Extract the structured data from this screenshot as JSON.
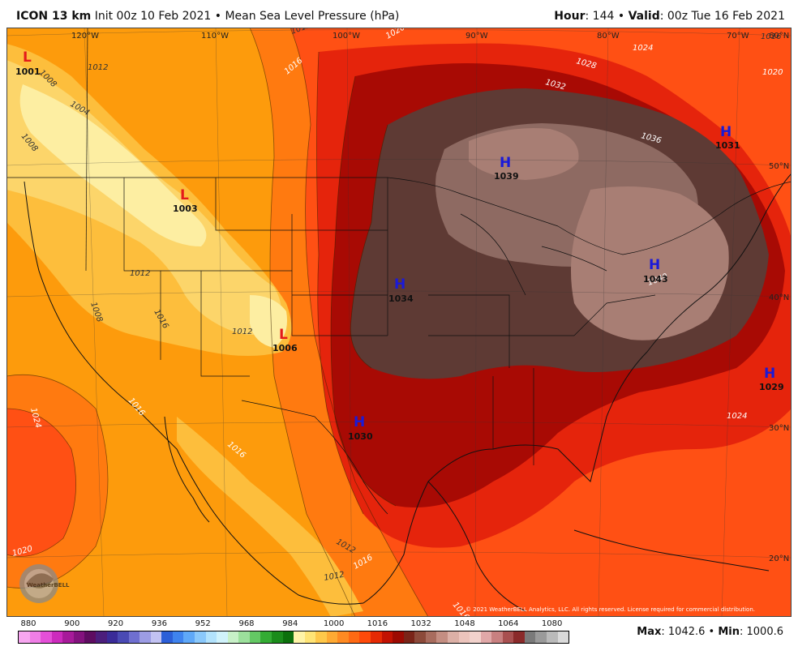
{
  "header": {
    "model": "ICON 13 km",
    "init": "Init 00z 10 Feb 2021",
    "bullet": "•",
    "field": "Mean Sea Level Pressure (hPa)",
    "hour_label": "Hour",
    "hour_value": ": 144",
    "valid_label": "Valid",
    "valid_value": ": 00z Tue 16 Feb 2021"
  },
  "map": {
    "lon_labels": [
      "120°W",
      "110°W",
      "100°W",
      "90°W",
      "80°W",
      "70°W"
    ],
    "lat_labels": [
      "60°N",
      "50°N",
      "40°N",
      "30°N",
      "20°N"
    ],
    "contour_labels": [
      "1001",
      "1008",
      "1012",
      "1004",
      "1008",
      "1012",
      "1016",
      "1020",
      "1024",
      "1028",
      "1032",
      "1036",
      "1040",
      "1024",
      "1020",
      "1016",
      "1016",
      "1012",
      "1008",
      "1012",
      "1024",
      "1016",
      "1020",
      "1016",
      "1012",
      "1016",
      "1012",
      "1016"
    ],
    "systems": [
      {
        "type": "L",
        "value": "1001"
      },
      {
        "type": "L",
        "value": "1003"
      },
      {
        "type": "L",
        "value": "1006"
      },
      {
        "type": "H",
        "value": "1039"
      },
      {
        "type": "H",
        "value": "1031"
      },
      {
        "type": "H",
        "value": "1034"
      },
      {
        "type": "H",
        "value": "1043"
      },
      {
        "type": "H",
        "value": "1029"
      },
      {
        "type": "H",
        "value": "1030"
      }
    ],
    "logo_text": "WeatherBELL",
    "copyright": "© 2021 WeatherBELL Analytics, LLC. All rights reserved. License required for commercial distribution."
  },
  "colorbar": {
    "ticks": [
      "880",
      "900",
      "920",
      "936",
      "952",
      "968",
      "984",
      "1000",
      "1016",
      "1032",
      "1048",
      "1064",
      "1080"
    ],
    "colors": [
      "#f7a6f0",
      "#ef7ee6",
      "#e44fd8",
      "#cc2bbd",
      "#a71a9a",
      "#83127e",
      "#5e0c61",
      "#4c1e7c",
      "#3a2b98",
      "#4a4ab4",
      "#6f6fd0",
      "#9c9ce4",
      "#c2c2f2",
      "#2c5fd8",
      "#3f83ee",
      "#5fa8f8",
      "#8ac8fb",
      "#b2e2fc",
      "#d0f2fb",
      "#c8f0c8",
      "#9ce09c",
      "#64c864",
      "#34ac34",
      "#1b8c1b",
      "#0c700c",
      "#fff4a8",
      "#ffe476",
      "#ffc84a",
      "#ffaa33",
      "#ff8a22",
      "#ff6a14",
      "#ff4a0a",
      "#e62a04",
      "#c21202",
      "#9c0a02",
      "#7a2418",
      "#8c4a3a",
      "#a86c5e",
      "#c48e82",
      "#dcb0a6",
      "#ecc4bc",
      "#f2d2cc",
      "#e0a8a8",
      "#c88080",
      "#a85050",
      "#8a2a2a",
      "#7a7a7a",
      "#9a9a9a",
      "#bababa",
      "#dadada"
    ]
  },
  "summary": {
    "max_label": "Max",
    "max_value": ": 1042.6",
    "bullet": "•",
    "min_label": "Min",
    "min_value": ": 1000.6"
  }
}
